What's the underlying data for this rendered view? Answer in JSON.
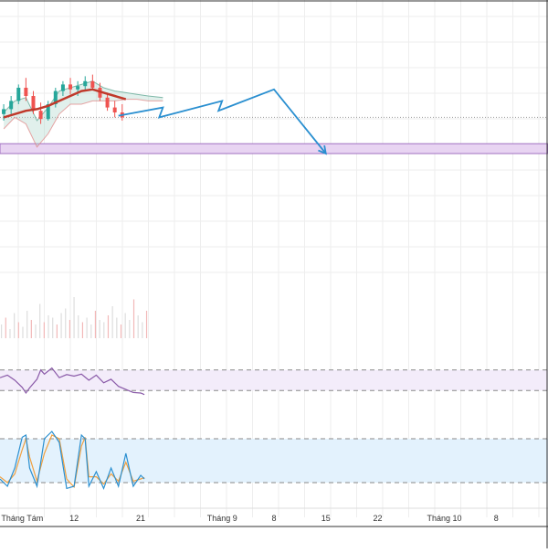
{
  "chart_data": {
    "type": "line",
    "title": "",
    "xlabel": "",
    "ylabel": "",
    "grid": true,
    "x_ticks": [
      {
        "label": "Tháng Tám",
        "day": 5
      },
      {
        "label": "12",
        "day": 12
      },
      {
        "label": "21",
        "day": 21
      },
      {
        "label": "Tháng 9",
        "day": 32
      },
      {
        "label": "8",
        "day": 39
      },
      {
        "label": "15",
        "day": 46
      },
      {
        "label": "22",
        "day": 53
      },
      {
        "label": "Tháng 10",
        "day": 62
      },
      {
        "label": "8",
        "day": 69
      }
    ],
    "x_range": [
      2,
      76
    ],
    "colors": {
      "grid": "#eeeeee",
      "frame": "#333333",
      "candle_up": "#26a69a",
      "candle_down": "#ef5350",
      "moving_average": "#c0392b",
      "cloud_line": "#7fb8a8",
      "cloud_fill": "#a8d5c8",
      "forecast": "#2a8fd0",
      "support_zone_fill": "#e8d4f2",
      "support_zone_border": "#a070c0",
      "rsi_line": "#8a5aa8",
      "rsi_band": "#f3ecfa",
      "stoch_k": "#2a8fd0",
      "stoch_d": "#f0a040",
      "stoch_band": "#e3f2fd",
      "volume": "#dddddd"
    },
    "price_panel": {
      "y_range": [
        0,
        100
      ],
      "reference_level": 62,
      "support_zone": [
        40,
        46
      ],
      "candles": [
        {
          "day": 2.5,
          "o": 64,
          "h": 70,
          "l": 60,
          "c": 67
        },
        {
          "day": 3.5,
          "o": 67,
          "h": 75,
          "l": 64,
          "c": 72
        },
        {
          "day": 4.5,
          "o": 72,
          "h": 82,
          "l": 70,
          "c": 80
        },
        {
          "day": 5.5,
          "o": 80,
          "h": 86,
          "l": 72,
          "c": 75
        },
        {
          "day": 6.5,
          "o": 75,
          "h": 78,
          "l": 64,
          "c": 66
        },
        {
          "day": 7.5,
          "o": 66,
          "h": 71,
          "l": 58,
          "c": 61
        },
        {
          "day": 8.5,
          "o": 61,
          "h": 72,
          "l": 60,
          "c": 70
        },
        {
          "day": 9.5,
          "o": 70,
          "h": 80,
          "l": 68,
          "c": 78
        },
        {
          "day": 10.5,
          "o": 78,
          "h": 84,
          "l": 75,
          "c": 82
        },
        {
          "day": 11.5,
          "o": 82,
          "h": 86,
          "l": 76,
          "c": 79
        },
        {
          "day": 12.5,
          "o": 79,
          "h": 84,
          "l": 75,
          "c": 81
        },
        {
          "day": 13.5,
          "o": 81,
          "h": 87,
          "l": 78,
          "c": 84
        },
        {
          "day": 14.5,
          "o": 84,
          "h": 88,
          "l": 79,
          "c": 80
        },
        {
          "day": 15.5,
          "o": 80,
          "h": 83,
          "l": 72,
          "c": 74
        },
        {
          "day": 16.5,
          "o": 74,
          "h": 77,
          "l": 66,
          "c": 68
        },
        {
          "day": 17.5,
          "o": 68,
          "h": 72,
          "l": 62,
          "c": 65
        },
        {
          "day": 18.5,
          "o": 65,
          "h": 70,
          "l": 60,
          "c": 62
        }
      ],
      "moving_average": [
        {
          "day": 2.5,
          "v": 62
        },
        {
          "day": 4,
          "v": 64
        },
        {
          "day": 5.5,
          "v": 66
        },
        {
          "day": 7,
          "v": 67
        },
        {
          "day": 8.5,
          "v": 69
        },
        {
          "day": 10,
          "v": 72
        },
        {
          "day": 11.5,
          "v": 75
        },
        {
          "day": 13,
          "v": 78
        },
        {
          "day": 14.5,
          "v": 79
        },
        {
          "day": 16,
          "v": 77
        },
        {
          "day": 17.5,
          "v": 75
        },
        {
          "day": 19,
          "v": 73
        }
      ],
      "cloud": [
        {
          "day": 2.5,
          "a": 65,
          "b": 55
        },
        {
          "day": 4,
          "a": 72,
          "b": 62
        },
        {
          "day": 5.5,
          "a": 74,
          "b": 58
        },
        {
          "day": 7,
          "a": 60,
          "b": 44
        },
        {
          "day": 8.5,
          "a": 68,
          "b": 52
        },
        {
          "day": 10,
          "a": 78,
          "b": 64
        },
        {
          "day": 11.5,
          "a": 80,
          "b": 70
        },
        {
          "day": 13,
          "a": 82,
          "b": 70
        },
        {
          "day": 14.5,
          "a": 84,
          "b": 72
        },
        {
          "day": 16,
          "a": 80,
          "b": 72
        },
        {
          "day": 17.5,
          "a": 78,
          "b": 72
        },
        {
          "day": 19,
          "a": 77,
          "b": 73
        },
        {
          "day": 20.5,
          "a": 76,
          "b": 73
        },
        {
          "day": 22,
          "a": 75,
          "b": 72
        },
        {
          "day": 24,
          "a": 74,
          "b": 72
        }
      ],
      "forecast_path": [
        {
          "day": 18,
          "v": 63
        },
        {
          "day": 24,
          "v": 68
        },
        {
          "day": 23.5,
          "v": 62
        },
        {
          "day": 32,
          "v": 72
        },
        {
          "day": 31.5,
          "v": 66
        },
        {
          "day": 39,
          "v": 79
        },
        {
          "day": 46,
          "v": 40
        }
      ]
    },
    "volume_panel": {
      "y_range": [
        0,
        100
      ],
      "values": [
        30,
        45,
        20,
        55,
        35,
        25,
        60,
        40,
        30,
        75,
        35,
        50,
        45,
        30,
        55,
        65,
        40,
        90,
        50,
        35,
        45,
        30,
        60,
        40,
        35,
        50,
        70,
        45,
        30,
        55,
        40,
        85,
        50,
        35,
        60
      ]
    },
    "rsi_panel": {
      "y_range": [
        0,
        100
      ],
      "upper": 70,
      "lower": 30,
      "values": [
        {
          "day": 2,
          "v": 55
        },
        {
          "day": 3,
          "v": 60
        },
        {
          "day": 4,
          "v": 50
        },
        {
          "day": 5,
          "v": 36
        },
        {
          "day": 5.5,
          "v": 25
        },
        {
          "day": 6,
          "v": 35
        },
        {
          "day": 7,
          "v": 52
        },
        {
          "day": 7.5,
          "v": 70
        },
        {
          "day": 8,
          "v": 62
        },
        {
          "day": 9,
          "v": 74
        },
        {
          "day": 10,
          "v": 55
        },
        {
          "day": 11,
          "v": 61
        },
        {
          "day": 12,
          "v": 58
        },
        {
          "day": 13,
          "v": 62
        },
        {
          "day": 14,
          "v": 50
        },
        {
          "day": 15,
          "v": 60
        },
        {
          "day": 16,
          "v": 45
        },
        {
          "day": 17,
          "v": 52
        },
        {
          "day": 18,
          "v": 38
        },
        {
          "day": 19,
          "v": 32
        },
        {
          "day": 20,
          "v": 26
        },
        {
          "day": 21,
          "v": 25
        },
        {
          "day": 21.5,
          "v": 22
        }
      ]
    },
    "stoch_panel": {
      "y_range": [
        0,
        100
      ],
      "upper": 80,
      "lower": 20,
      "k": [
        {
          "day": 2,
          "v": 25
        },
        {
          "day": 3,
          "v": 15
        },
        {
          "day": 4,
          "v": 40
        },
        {
          "day": 5,
          "v": 82
        },
        {
          "day": 5.5,
          "v": 85
        },
        {
          "day": 6,
          "v": 40
        },
        {
          "day": 7,
          "v": 15
        },
        {
          "day": 8,
          "v": 80
        },
        {
          "day": 9,
          "v": 90
        },
        {
          "day": 10,
          "v": 75
        },
        {
          "day": 11,
          "v": 12
        },
        {
          "day": 12,
          "v": 15
        },
        {
          "day": 13,
          "v": 85
        },
        {
          "day": 13.5,
          "v": 80
        },
        {
          "day": 14,
          "v": 15
        },
        {
          "day": 15,
          "v": 35
        },
        {
          "day": 16,
          "v": 12
        },
        {
          "day": 17,
          "v": 40
        },
        {
          "day": 18,
          "v": 15
        },
        {
          "day": 19,
          "v": 60
        },
        {
          "day": 20,
          "v": 15
        },
        {
          "day": 21,
          "v": 30
        },
        {
          "day": 21.5,
          "v": 25
        }
      ],
      "d": [
        {
          "day": 2,
          "v": 28
        },
        {
          "day": 3,
          "v": 20
        },
        {
          "day": 4,
          "v": 32
        },
        {
          "day": 5,
          "v": 65
        },
        {
          "day": 5.5,
          "v": 80
        },
        {
          "day": 6,
          "v": 55
        },
        {
          "day": 7,
          "v": 22
        },
        {
          "day": 8,
          "v": 60
        },
        {
          "day": 9,
          "v": 85
        },
        {
          "day": 10,
          "v": 80
        },
        {
          "day": 11,
          "v": 25
        },
        {
          "day": 12,
          "v": 14
        },
        {
          "day": 13,
          "v": 70
        },
        {
          "day": 13.5,
          "v": 82
        },
        {
          "day": 14,
          "v": 28
        },
        {
          "day": 15,
          "v": 28
        },
        {
          "day": 16,
          "v": 18
        },
        {
          "day": 17,
          "v": 32
        },
        {
          "day": 18,
          "v": 22
        },
        {
          "day": 19,
          "v": 48
        },
        {
          "day": 20,
          "v": 22
        },
        {
          "day": 21,
          "v": 25
        },
        {
          "day": 21.5,
          "v": 27
        }
      ]
    }
  }
}
